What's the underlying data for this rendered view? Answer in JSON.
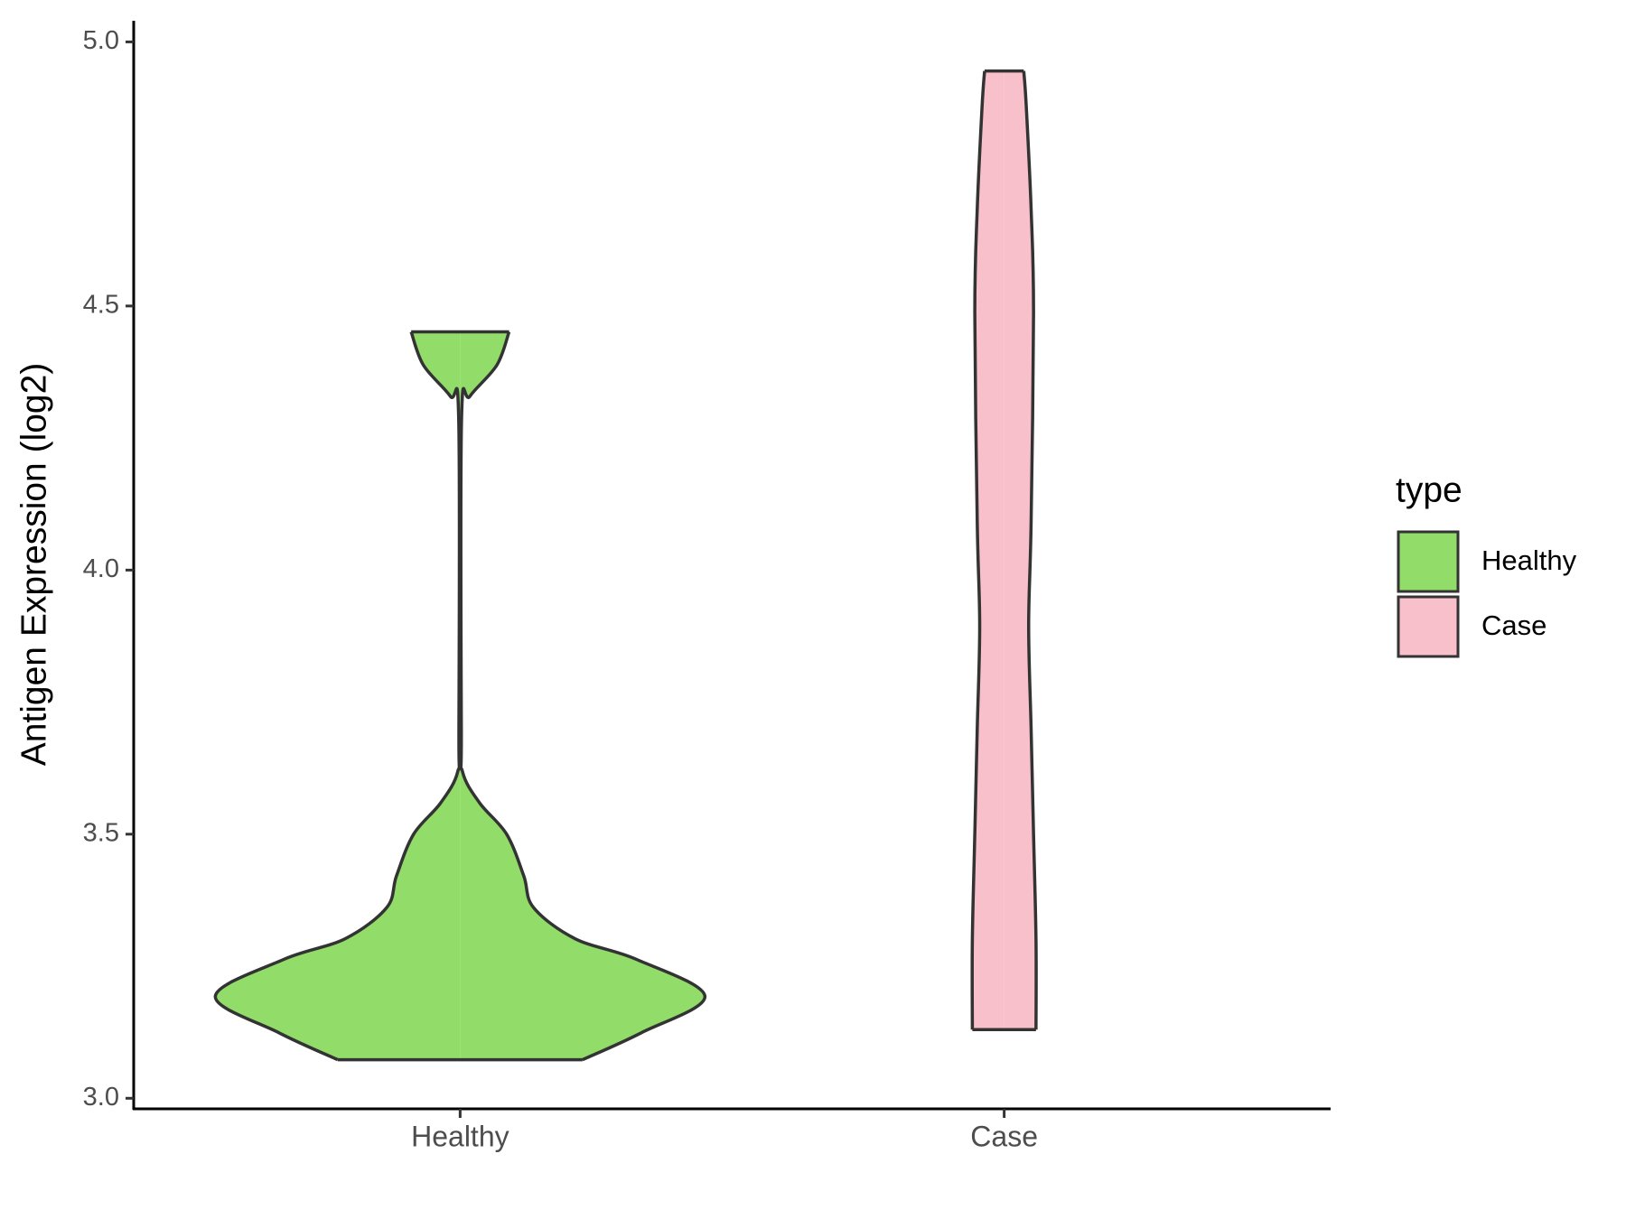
{
  "chart_data": {
    "type": "violin",
    "y_label": "Antigen Expression (log2)",
    "categories": [
      "Healthy",
      "Case"
    ],
    "legend_title": "type",
    "series": [
      {
        "name": "Healthy",
        "color": "#92DC6A",
        "y": [
          3.073,
          3.124,
          3.193,
          3.263,
          3.302,
          3.361,
          3.421,
          3.5,
          3.559,
          3.618,
          3.697,
          4.289,
          4.329,
          4.388,
          4.451
        ],
        "density": [
          0.5,
          0.74,
          1.0,
          0.72,
          0.47,
          0.3,
          0.26,
          0.19,
          0.08,
          0.01,
          0.005,
          0.006,
          0.04,
          0.15,
          0.2
        ]
      },
      {
        "name": "Case",
        "color": "#F7C0CB",
        "y": [
          3.13,
          3.3,
          3.5,
          3.7,
          3.894,
          4.09,
          4.487,
          4.684,
          4.88,
          4.945
        ],
        "density": [
          0.13,
          0.13,
          0.12,
          0.11,
          0.1,
          0.11,
          0.12,
          0.11,
          0.09,
          0.08
        ]
      }
    ],
    "ylim": [
      2.98,
      5.04
    ],
    "yticks": [
      {
        "value": 3,
        "label": "3.0"
      },
      {
        "value": 3.5,
        "label": "3.5"
      },
      {
        "value": 4,
        "label": "4.0"
      },
      {
        "value": 4.5,
        "label": "4.5"
      },
      {
        "value": 5,
        "label": "5.0"
      }
    ],
    "grid": false,
    "legend": "right"
  }
}
